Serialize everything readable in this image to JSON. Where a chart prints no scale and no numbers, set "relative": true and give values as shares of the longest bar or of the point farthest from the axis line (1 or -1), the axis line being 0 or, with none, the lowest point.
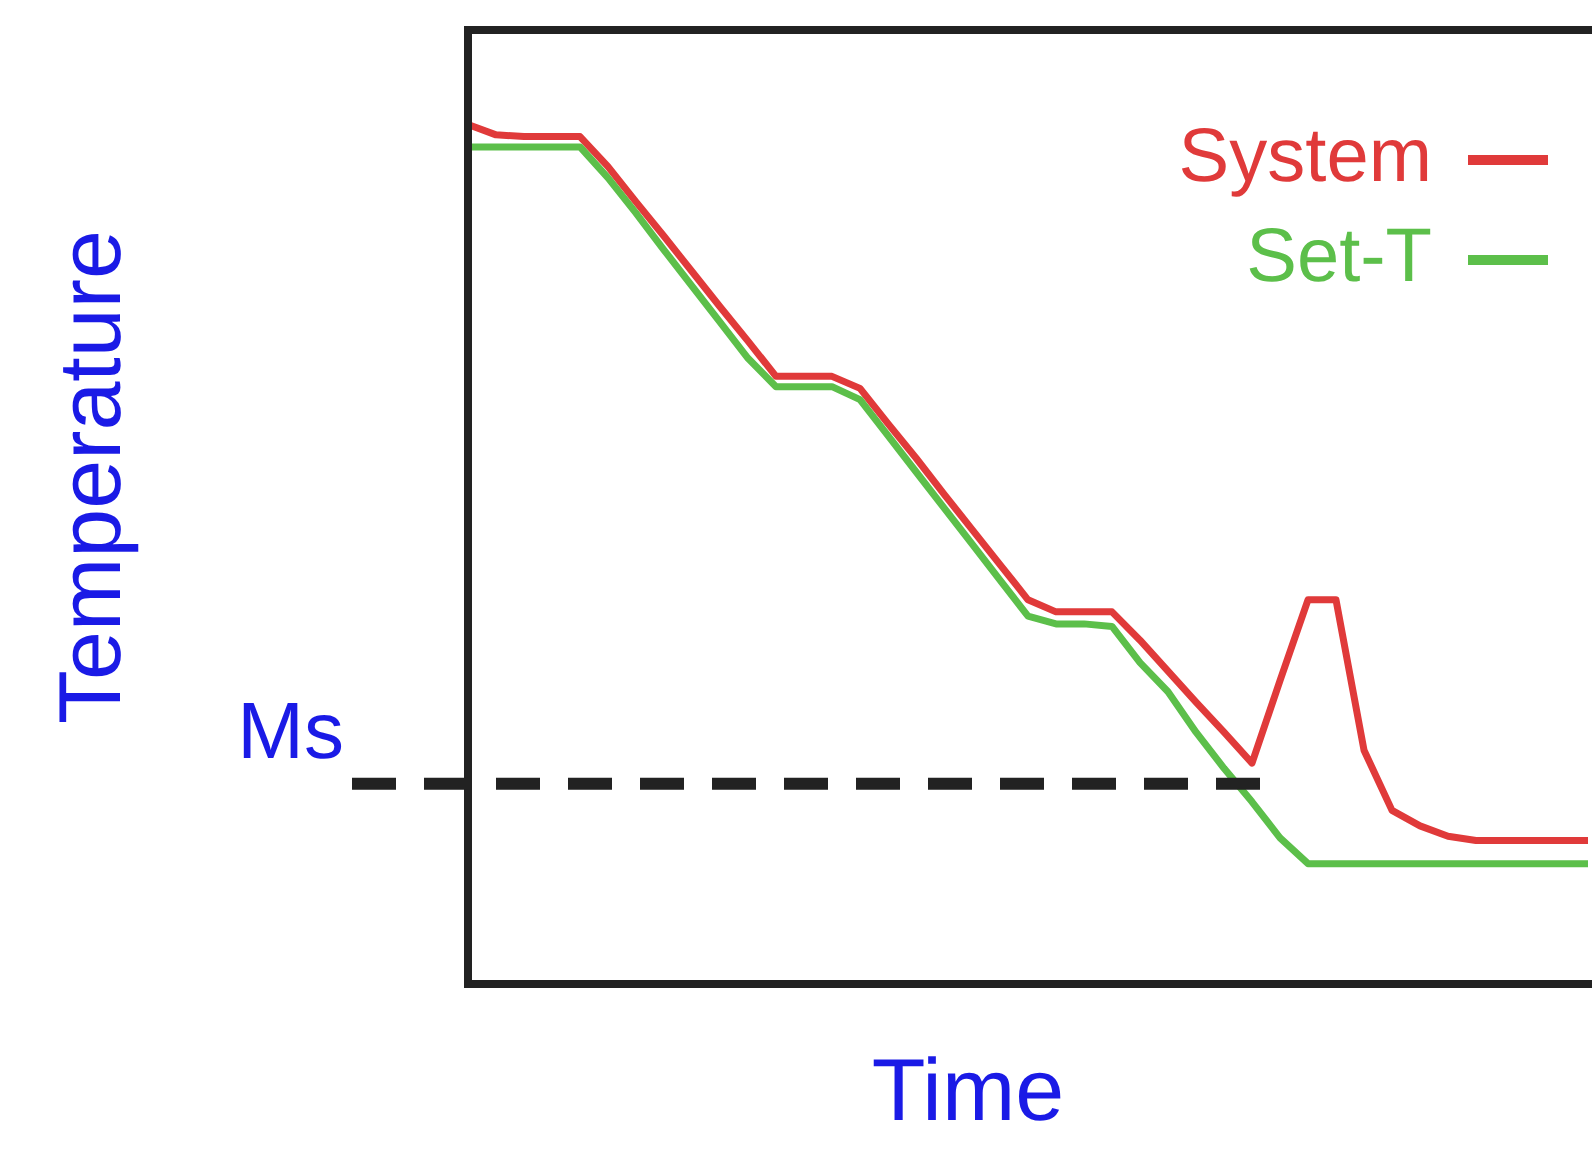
{
  "chart_data": {
    "type": "line",
    "relative": true,
    "xlabel": "Time",
    "ylabel": "Temperature",
    "legend": "top right",
    "marker": "none",
    "line_style": "solid",
    "categories": [
      null,
      null,
      null,
      null,
      null,
      null,
      null,
      null,
      null,
      null,
      null,
      null,
      null,
      null,
      null,
      null,
      null,
      null,
      null,
      null,
      null,
      null,
      null,
      null,
      null,
      null,
      null,
      null,
      null,
      null,
      null,
      null,
      null,
      null,
      null,
      null,
      null,
      null,
      null,
      null,
      null
    ],
    "series": [
      {
        "name": "System",
        "color": "#e03a3a",
        "values": [
          1.0,
          0.988,
          0.986,
          0.986,
          0.986,
          0.951,
          0.91,
          0.87,
          0.829,
          0.788,
          0.748,
          0.707,
          0.707,
          0.707,
          0.693,
          0.652,
          0.612,
          0.57,
          0.529,
          0.488,
          0.447,
          0.433,
          0.433,
          0.433,
          0.4,
          0.364,
          0.328,
          0.293,
          0.257,
          0.353,
          0.447,
          0.447,
          0.272,
          0.202,
          0.184,
          0.172,
          0.167,
          0.167,
          0.167,
          0.167,
          0.167
        ]
      },
      {
        "name": "Set-T",
        "color": "#5cbf4a",
        "values": [
          0.974,
          0.974,
          0.974,
          0.974,
          0.974,
          0.938,
          0.897,
          0.854,
          0.812,
          0.77,
          0.728,
          0.695,
          0.695,
          0.695,
          0.68,
          0.638,
          0.596,
          0.554,
          0.512,
          0.47,
          0.428,
          0.419,
          0.419,
          0.416,
          0.374,
          0.34,
          0.293,
          0.251,
          0.212,
          0.17,
          0.14,
          0.14,
          0.14,
          0.14,
          0.14,
          0.14,
          0.14,
          0.14,
          0.14,
          0.14,
          0.14
        ]
      }
    ],
    "ref_lines": [
      {
        "axis": "y",
        "value": 0.233,
        "label": "Ms",
        "color": "#222222",
        "line_style": "dashed"
      }
    ]
  }
}
